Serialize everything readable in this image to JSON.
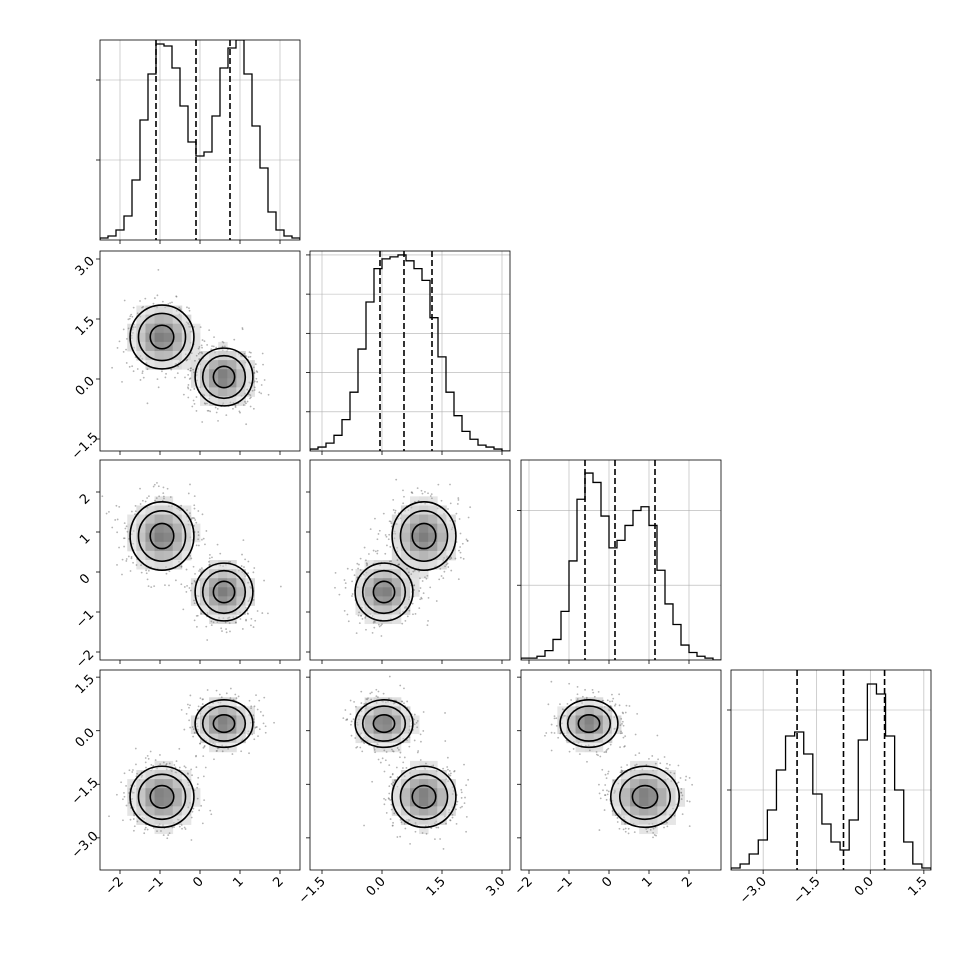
{
  "chart_data": {
    "type": "corner",
    "title": "",
    "n_params": 4,
    "tick_labels": {
      "x": [
        [
          "−2",
          "−1",
          "0",
          "1",
          "2"
        ],
        [
          "−1.5",
          "0.0",
          "1.5",
          "3.0"
        ],
        [
          "−2",
          "−1",
          "0",
          "1",
          "2"
        ],
        [
          "−3.0",
          "−1.5",
          "0.0",
          "1.5"
        ]
      ],
      "y": [
        [],
        [
          "−1.5",
          "0.0",
          "1.5",
          "3.0"
        ],
        [
          "−2",
          "−1",
          "0",
          "1",
          "2"
        ],
        [
          "−3.0",
          "−1.5",
          "0.0",
          "1.5"
        ]
      ]
    },
    "params": [
      {
        "range": [
          -2.5,
          2.5
        ],
        "ticks": [
          -2,
          -1,
          0,
          1,
          2
        ],
        "quantiles": [
          -1.1,
          -0.1,
          0.75
        ],
        "hist_counts": [
          0.01,
          0.02,
          0.05,
          0.12,
          0.3,
          0.6,
          0.83,
          0.98,
          0.97,
          0.86,
          0.67,
          0.49,
          0.42,
          0.44,
          0.62,
          0.86,
          0.96,
          1.0,
          0.83,
          0.57,
          0.36,
          0.14,
          0.05,
          0.02,
          0.01
        ],
        "hist_ylim": [
          0,
          1.0
        ],
        "hist_grid": [
          0.4,
          0.8
        ]
      },
      {
        "range": [
          -1.8,
          3.2
        ],
        "ticks": [
          -1.5,
          0,
          1.5,
          3
        ],
        "quantiles": [
          -0.05,
          0.55,
          1.25
        ],
        "hist_counts": [
          0.01,
          0.02,
          0.04,
          0.08,
          0.16,
          0.3,
          0.52,
          0.76,
          0.93,
          0.98,
          0.99,
          1.0,
          0.97,
          0.93,
          0.87,
          0.68,
          0.48,
          0.3,
          0.18,
          0.1,
          0.06,
          0.03,
          0.02,
          0.01,
          0.0
        ],
        "hist_ylim": [
          0,
          1.02
        ],
        "hist_grid": [
          0.2,
          0.4,
          0.6,
          0.8,
          1.0
        ]
      },
      {
        "range": [
          -2.2,
          2.8
        ],
        "ticks": [
          -2,
          -1,
          0,
          1,
          2
        ],
        "quantiles": [
          -0.6,
          0.15,
          1.15
        ],
        "hist_counts": [
          0.01,
          0.01,
          0.02,
          0.05,
          0.11,
          0.26,
          0.53,
          0.86,
          1.0,
          0.95,
          0.77,
          0.6,
          0.64,
          0.72,
          0.8,
          0.82,
          0.72,
          0.48,
          0.3,
          0.19,
          0.08,
          0.04,
          0.02,
          0.01,
          0.0
        ],
        "hist_ylim": [
          0,
          1.07
        ],
        "hist_grid": [
          0.4,
          0.8
        ]
      },
      {
        "range": [
          -3.9,
          1.7
        ],
        "ticks": [
          -3,
          -1.5,
          0,
          1.5
        ],
        "quantiles": [
          -2.05,
          -0.75,
          0.4
        ],
        "hist_counts": [
          0.01,
          0.03,
          0.08,
          0.15,
          0.3,
          0.5,
          0.67,
          0.69,
          0.58,
          0.38,
          0.23,
          0.14,
          0.1,
          0.25,
          0.65,
          0.93,
          0.88,
          0.67,
          0.4,
          0.14,
          0.03,
          0.01
        ],
        "hist_ylim": [
          0,
          1.0
        ],
        "hist_grid": [
          0.4,
          0.8
        ]
      }
    ],
    "components": [
      {
        "weight": 0.5,
        "mean": [
          -0.95,
          1.05,
          0.9,
          -1.85
        ],
        "sigma": [
          0.42,
          0.42,
          0.45,
          0.45
        ]
      },
      {
        "weight": 0.5,
        "mean": [
          0.6,
          0.05,
          -0.5,
          0.2
        ],
        "sigma": [
          0.38,
          0.38,
          0.38,
          0.35
        ]
      }
    ],
    "colors": {
      "density": "#000000",
      "background": "#ffffff",
      "grid": "#b0b0b0"
    },
    "grid": true,
    "quantile_lines": "dashed"
  }
}
